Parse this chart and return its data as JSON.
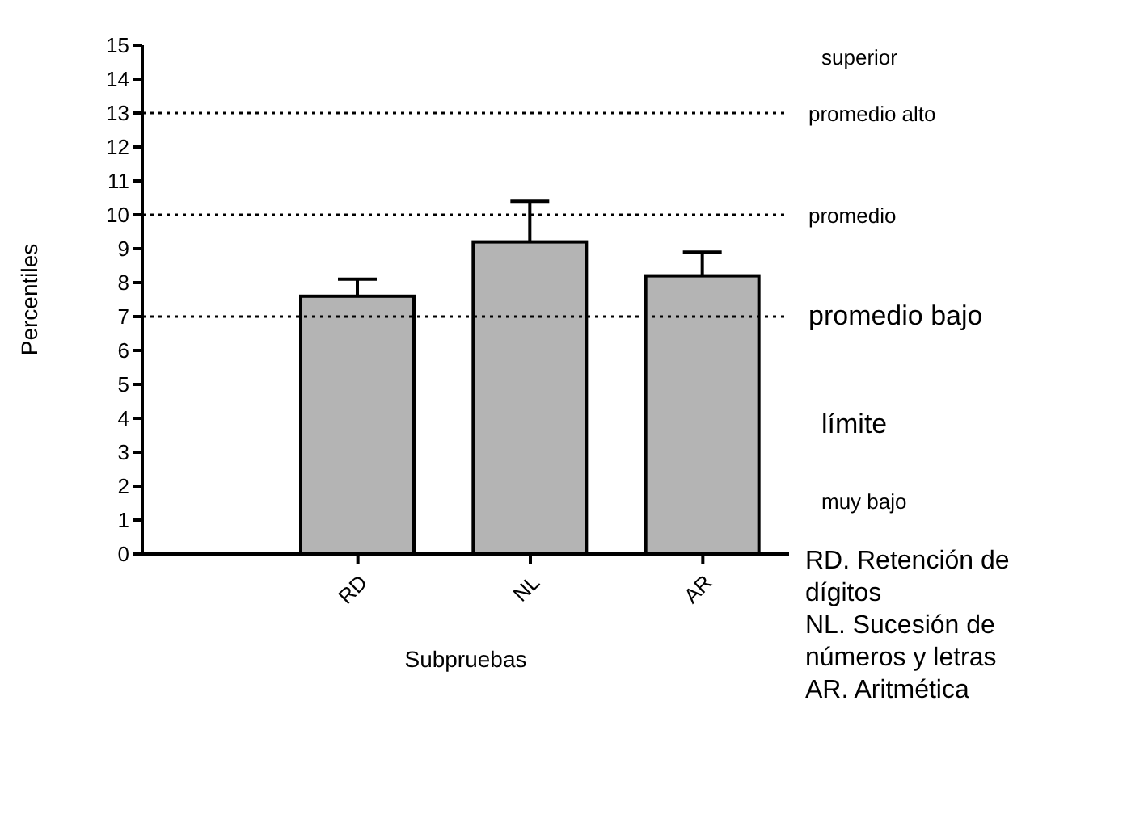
{
  "chart_data": {
    "type": "bar",
    "ylabel": "Percentiles",
    "xlabel": "Subpruebas",
    "categories": [
      "RD",
      "NL",
      "AR"
    ],
    "values": [
      7.6,
      9.2,
      8.2
    ],
    "errors": [
      [
        7.6,
        8.1
      ],
      [
        9.2,
        10.4
      ],
      [
        8.2,
        8.9
      ]
    ],
    "color": "#b4b4b4",
    "ylim": [
      0,
      15
    ],
    "yticks": [
      0,
      1,
      2,
      3,
      4,
      5,
      6,
      7,
      8,
      9,
      10,
      11,
      12,
      13,
      14,
      15
    ],
    "ref_lines": [
      {
        "axis": "y",
        "value": 7,
        "label": "promedio bajo",
        "line_style": "dotted",
        "color": "#000000"
      },
      {
        "axis": "y",
        "value": 10,
        "label": "promedio",
        "line_style": "dotted",
        "color": "#000000"
      },
      {
        "axis": "y",
        "value": 13,
        "label": "promedio alto",
        "line_style": "dotted",
        "color": "#000000"
      }
    ],
    "annotations": [
      "superior",
      "límite",
      "muy bajo",
      "RD. Retención de dígitos",
      "NL. Sucesión de números y letras",
      "AR. Aritmética"
    ]
  }
}
